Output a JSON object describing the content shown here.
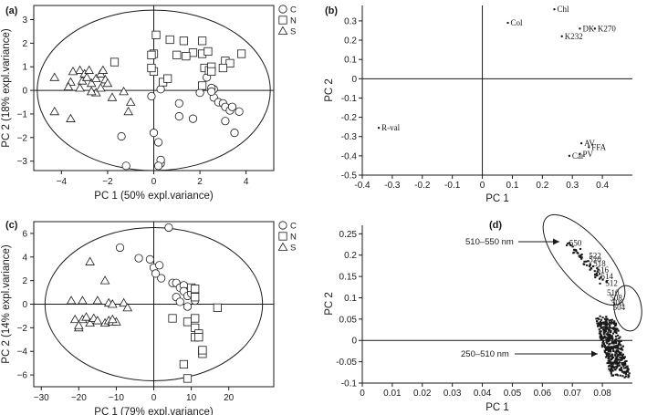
{
  "chart_data": [
    {
      "panel": "(a)",
      "type": "scatter",
      "xlabel": "PC 1 (50% expl.variance)",
      "ylabel": "PC 2 (18% expl.variance)",
      "xlim": [
        -5.2,
        5.2
      ],
      "ylim": [
        -3.4,
        3.6
      ],
      "xticks": [
        -4,
        -2,
        0,
        2,
        4
      ],
      "yticks": [
        -3,
        -2,
        -1,
        0,
        1,
        2,
        3
      ],
      "ellipse": {
        "center": [
          0,
          0
        ],
        "rx": 5.05,
        "ry": 3.4
      },
      "legend": [
        "C",
        "N",
        "S"
      ],
      "series": [
        {
          "name": "C",
          "marker": "circle",
          "points": [
            [
              -1.4,
              -1.95
            ],
            [
              -1.2,
              -3.2
            ],
            [
              0,
              -1.8
            ],
            [
              0.2,
              -2.2
            ],
            [
              0.3,
              -3.1
            ],
            [
              0.3,
              -2.95
            ],
            [
              0.2,
              -3.2
            ],
            [
              1.1,
              -0.55
            ],
            [
              1.1,
              -1.1
            ],
            [
              1.7,
              -1.2
            ],
            [
              2.0,
              -0.1
            ],
            [
              2.6,
              0.05
            ],
            [
              2.5,
              0.1
            ],
            [
              2.6,
              -0.3
            ],
            [
              2.8,
              -0.5
            ],
            [
              3.0,
              -0.55
            ],
            [
              3.1,
              -0.7
            ],
            [
              3.3,
              -0.85
            ],
            [
              3.4,
              -0.7
            ],
            [
              3.1,
              -1.3
            ],
            [
              3.5,
              -1.8
            ],
            [
              2.3,
              0.55
            ],
            [
              2.5,
              -0.05
            ],
            [
              3.7,
              -0.9
            ],
            [
              0.3,
              0.05
            ],
            [
              -0.1,
              -0.25
            ]
          ]
        },
        {
          "name": "N",
          "marker": "square",
          "points": [
            [
              0.1,
              2.35
            ],
            [
              0.0,
              1.55
            ],
            [
              -0.1,
              1.5
            ],
            [
              0.0,
              0.8
            ],
            [
              0.4,
              0.35
            ],
            [
              -1.7,
              1.2
            ],
            [
              0.7,
              2.15
            ],
            [
              1.0,
              1.5
            ],
            [
              1.3,
              2.1
            ],
            [
              2.1,
              2.1
            ],
            [
              2.1,
              1.55
            ],
            [
              2.35,
              1.65
            ],
            [
              1.7,
              1.6
            ],
            [
              2.2,
              0.95
            ],
            [
              2.4,
              0.85
            ],
            [
              2.5,
              1.0
            ],
            [
              2.1,
              0.2
            ],
            [
              3.1,
              1.25
            ],
            [
              3.3,
              1.15
            ],
            [
              3.0,
              0.95
            ],
            [
              3.8,
              1.55
            ],
            [
              2.5,
              0.8
            ],
            [
              1.4,
              1.45
            ],
            [
              0.6,
              0.5
            ],
            [
              -0.1,
              0.95
            ]
          ]
        },
        {
          "name": "S",
          "marker": "triangle",
          "points": [
            [
              -4.3,
              0.55
            ],
            [
              -4.3,
              -0.9
            ],
            [
              -3.6,
              -1.2
            ],
            [
              -3.6,
              0.35
            ],
            [
              -3.2,
              0.85
            ],
            [
              -3.0,
              0.7
            ],
            [
              -2.8,
              0.85
            ],
            [
              -3.1,
              0.4
            ],
            [
              -3.2,
              0.1
            ],
            [
              -2.7,
              0.3
            ],
            [
              -2.5,
              -0.1
            ],
            [
              -2.5,
              0.5
            ],
            [
              -2.3,
              0.7
            ],
            [
              -2.2,
              0.85
            ],
            [
              -2.1,
              0.45
            ],
            [
              -2.0,
              0.3
            ],
            [
              -2.3,
              0.1
            ],
            [
              -1.8,
              -0.3
            ],
            [
              -1.3,
              -0.05
            ],
            [
              -1.0,
              -0.5
            ],
            [
              -1.1,
              -0.9
            ],
            [
              -2.7,
              -0.05
            ],
            [
              -2.9,
              0.55
            ],
            [
              -3.5,
              0.8
            ],
            [
              -3.7,
              0.15
            ]
          ]
        }
      ]
    },
    {
      "panel": "(b)",
      "type": "scatter",
      "xlabel": "PC 1",
      "ylabel": "PC 2",
      "xlim": [
        -0.4,
        0.5
      ],
      "ylim": [
        -0.5,
        0.38
      ],
      "xticks": [
        -0.4,
        -0.3,
        -0.2,
        -0.1,
        0,
        0.1,
        0.2,
        0.3,
        0.4
      ],
      "yticks": [
        -0.5,
        -0.4,
        -0.3,
        -0.2,
        -0.1,
        0,
        0.1,
        0.2,
        0.3
      ],
      "xtick_labels": [
        "-0.4",
        "-0.3",
        "-0.2",
        "-0.1",
        "0",
        "0.1",
        "0.2",
        "0.3",
        "0.4"
      ],
      "ytick_labels": [
        "-0.5",
        "-0.4",
        "-0.3",
        "-0.2",
        "-0.1",
        "0",
        "0.1",
        "0.2",
        "0.3"
      ],
      "points": [
        {
          "label": "Chl",
          "x": 0.24,
          "y": 0.36
        },
        {
          "label": "Col",
          "x": 0.085,
          "y": 0.29
        },
        {
          "label": "DK",
          "x": 0.325,
          "y": 0.26
        },
        {
          "label": "K270",
          "x": 0.375,
          "y": 0.26
        },
        {
          "label": "K232",
          "x": 0.265,
          "y": 0.22
        },
        {
          "label": "R-val",
          "x": -0.345,
          "y": -0.255
        },
        {
          "label": "AV",
          "x": 0.33,
          "y": -0.335
        },
        {
          "label": "FFA",
          "x": 0.355,
          "y": -0.355
        },
        {
          "label": "Car",
          "x": 0.29,
          "y": -0.4
        },
        {
          "label": "PV",
          "x": 0.325,
          "y": -0.39
        }
      ]
    },
    {
      "panel": "(c)",
      "type": "scatter",
      "xlabel": "PC 1 (79% expl.variance)",
      "ylabel": "PC 2 (14% expl.variance)",
      "xlim": [
        -32,
        32
      ],
      "ylim": [
        -7,
        7
      ],
      "xticks": [
        -30,
        -20,
        -10,
        0,
        10,
        20
      ],
      "yticks": [
        -6,
        -4,
        -2,
        0,
        2,
        4,
        6
      ],
      "ellipse": {
        "center": [
          0,
          0
        ],
        "rx": 29,
        "ry": 6.5
      },
      "legend": [
        "C",
        "N",
        "S"
      ],
      "series": [
        {
          "name": "C",
          "marker": "circle",
          "points": [
            [
              -9,
              4.8
            ],
            [
              -4,
              3.9
            ],
            [
              -1,
              3.8
            ],
            [
              0,
              3.1
            ],
            [
              1.5,
              3.3
            ],
            [
              4,
              6.5
            ],
            [
              2,
              2.2
            ],
            [
              5,
              1.8
            ],
            [
              6,
              1.8
            ],
            [
              7,
              1.4
            ],
            [
              8,
              1.6
            ],
            [
              8,
              1.1
            ],
            [
              6,
              0.6
            ],
            [
              9,
              0.7
            ],
            [
              10,
              0.9
            ],
            [
              7,
              0.2
            ],
            [
              9,
              -0.2
            ],
            [
              11,
              0.3
            ],
            [
              0.5,
              2.6
            ]
          ]
        },
        {
          "name": "N",
          "marker": "square",
          "points": [
            [
              10,
              1.4
            ],
            [
              11,
              1.3
            ],
            [
              11,
              0.6
            ],
            [
              5,
              -1.2
            ],
            [
              9,
              -1.5
            ],
            [
              11,
              -2.0
            ],
            [
              12,
              -2.5
            ],
            [
              11,
              -2.8
            ],
            [
              12,
              -2.8
            ],
            [
              13,
              -4.0
            ],
            [
              13,
              -4.2
            ],
            [
              17,
              -0.3
            ],
            [
              8,
              -5.1
            ],
            [
              9,
              -6.3
            ],
            [
              11,
              -1.2
            ],
            [
              13,
              -3.9
            ]
          ]
        },
        {
          "name": "S",
          "marker": "triangle",
          "points": [
            [
              -17,
              3.6
            ],
            [
              -13,
              2.0
            ],
            [
              -22,
              0.3
            ],
            [
              -19,
              0.3
            ],
            [
              -15,
              0.3
            ],
            [
              -12,
              0.1
            ],
            [
              -11,
              0.0
            ],
            [
              -21,
              -1.3
            ],
            [
              -19,
              -1.3
            ],
            [
              -18,
              -1.1
            ],
            [
              -17,
              -1.6
            ],
            [
              -16,
              -1.2
            ],
            [
              -13,
              -1.6
            ],
            [
              -12,
              -1.4
            ],
            [
              -11,
              -1.5
            ],
            [
              -10,
              -1.5
            ],
            [
              -8,
              0.1
            ],
            [
              -20,
              -2.0
            ],
            [
              -20,
              -1.8
            ],
            [
              -15,
              -1.4
            ],
            [
              -7,
              -0.3
            ],
            [
              -11,
              -1.3
            ]
          ]
        }
      ]
    },
    {
      "panel": "(d)",
      "type": "scatter",
      "xlabel": "PC 1",
      "ylabel": "PC 2",
      "xlim": [
        0,
        0.09
      ],
      "ylim": [
        -0.1,
        0.27
      ],
      "xticks": [
        0,
        0.01,
        0.02,
        0.03,
        0.04,
        0.05,
        0.06,
        0.07,
        0.08
      ],
      "yticks": [
        -0.1,
        -0.05,
        0,
        0.05,
        0.1,
        0.15,
        0.2,
        0.25
      ],
      "xtick_labels": [
        "0",
        "0.01",
        "0.02",
        "0.03",
        "0.04",
        "0.05",
        "0.06",
        "0.07",
        "0.08"
      ],
      "ytick_labels": [
        "-0.1",
        "-0.05",
        "0",
        "0.05",
        "0.1",
        "0.15",
        "0.2",
        "0.25"
      ],
      "annotations": [
        {
          "text": "510–550 nm",
          "x": 0.07,
          "y": 0.24
        },
        {
          "text": "250–510 nm",
          "x": 0.082,
          "y": -0.03
        }
      ],
      "point_labels": [
        {
          "label": "550",
          "x": 0.069,
          "y": 0.228
        },
        {
          "label": "522",
          "x": 0.0755,
          "y": 0.198
        },
        {
          "label": "520",
          "x": 0.0755,
          "y": 0.19
        },
        {
          "label": "518",
          "x": 0.077,
          "y": 0.18
        },
        {
          "label": "516",
          "x": 0.078,
          "y": 0.165
        },
        {
          "label": "514",
          "x": 0.0795,
          "y": 0.15
        },
        {
          "label": "512",
          "x": 0.081,
          "y": 0.134
        },
        {
          "label": "510",
          "x": 0.0815,
          "y": 0.112
        },
        {
          "label": "508",
          "x": 0.0825,
          "y": 0.1
        },
        {
          "label": "506",
          "x": 0.083,
          "y": 0.088
        },
        {
          "label": "504",
          "x": 0.0835,
          "y": 0.077
        }
      ],
      "clusters": [
        {
          "name": "510–550 nm",
          "from": [
            0.069,
            0.228
          ],
          "to": [
            0.081,
            0.134
          ],
          "count": 55
        },
        {
          "name": "250–510 nm",
          "from": [
            0.081,
            0.05
          ],
          "to": [
            0.086,
            -0.08
          ],
          "count": 420
        }
      ]
    }
  ],
  "panels": {
    "a": {
      "tag": "(a)"
    },
    "b": {
      "tag": "(b)"
    },
    "c": {
      "tag": "(c)"
    },
    "d": {
      "tag": "(d)"
    }
  }
}
